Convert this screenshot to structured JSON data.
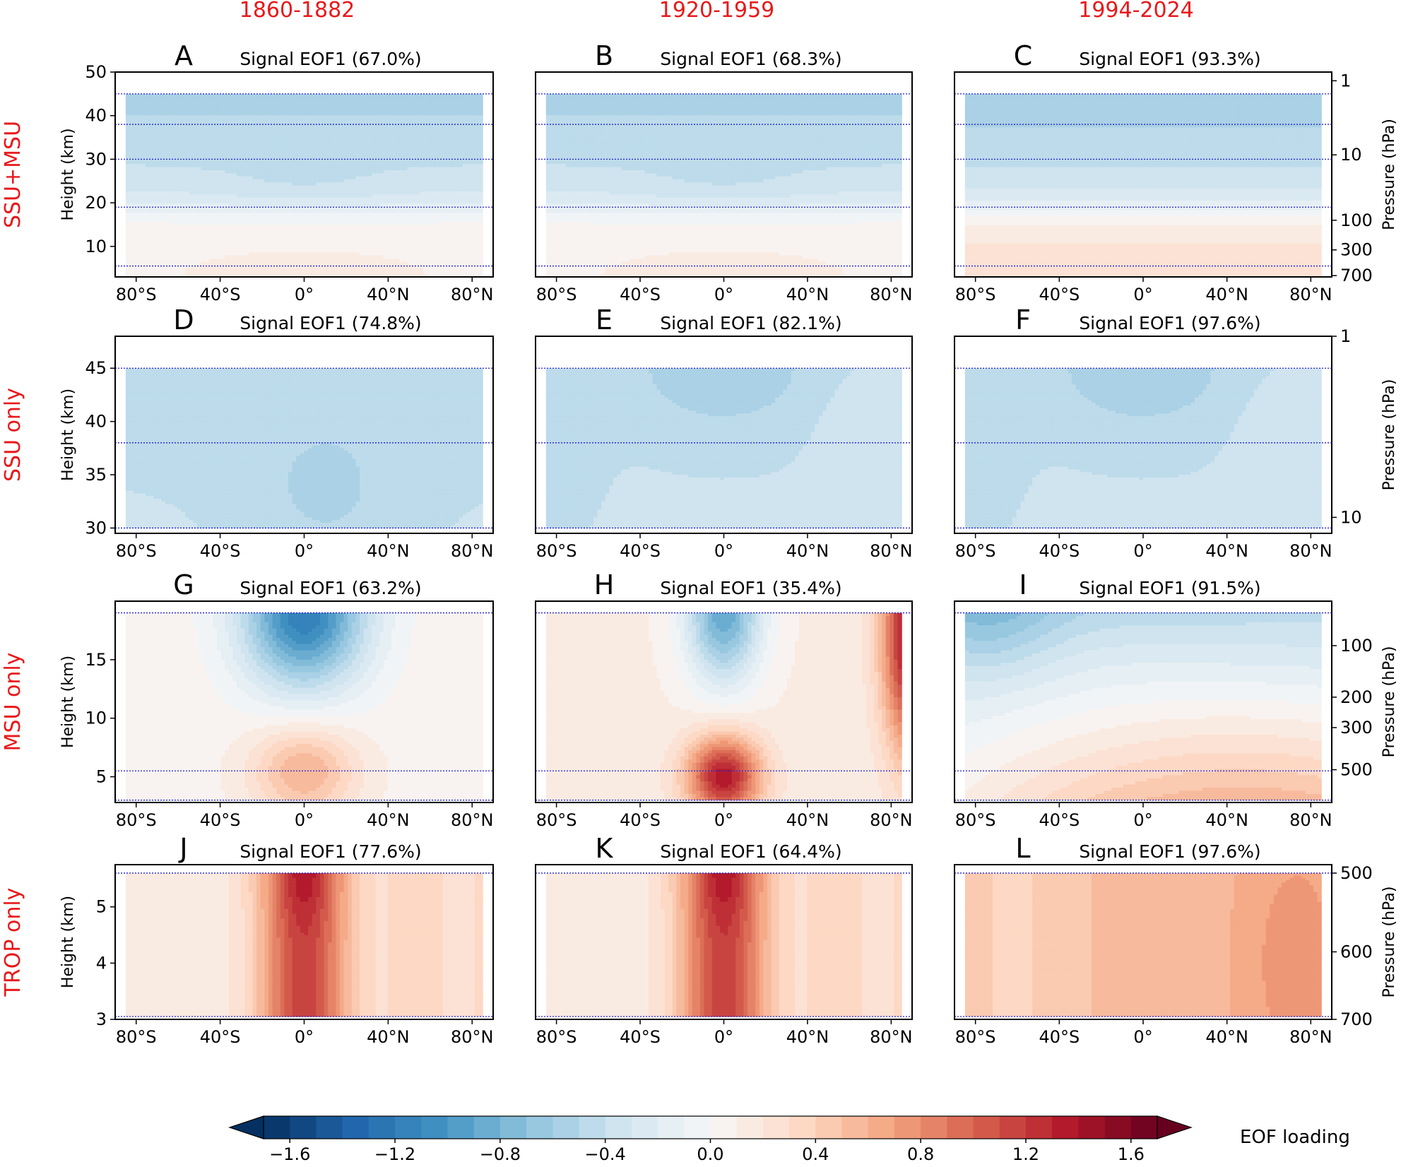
{
  "figure": {
    "column_headers": [
      "1860-1882",
      "1920-1959",
      "1994-2024"
    ],
    "row_headers": [
      "SSU+MSU",
      "SSU only",
      "MSU only",
      "TROP only"
    ],
    "header_color": "#e8191b",
    "y_label": "Height (km)",
    "y2_label": "Pressure (hPa)",
    "colorbar": {
      "label": "EOF loading",
      "vmin": -1.7,
      "vmax": 1.7,
      "step": 0.1,
      "ticks": [
        -1.6,
        -1.2,
        -0.8,
        -0.4,
        0.0,
        0.4,
        0.8,
        1.2,
        1.6
      ],
      "tick_labels": [
        "−1.6",
        "−1.2",
        "−0.8",
        "−0.4",
        "0.0",
        "0.4",
        "0.8",
        "1.2",
        "1.6"
      ],
      "cmap": "RdBu_r",
      "extend": "both"
    }
  },
  "chart_data": [
    {
      "type": "contour",
      "panel": "A",
      "letter": "A",
      "title": "Signal EOF1 (67.0%)",
      "row": 0,
      "col": 0,
      "x_ticks": [
        -80,
        -40,
        0,
        40,
        80
      ],
      "x_tick_labels": [
        "80°S",
        "40°S",
        "0°",
        "40°N",
        "80°N"
      ],
      "xlim": [
        -90,
        90
      ],
      "ylim": [
        3,
        50
      ],
      "yticks": [
        10,
        20,
        30,
        40,
        50
      ],
      "ytick_labels": [
        "10",
        "20",
        "30",
        "40",
        "50"
      ],
      "data_ylim": [
        3,
        45
      ],
      "pressure_ticks": [],
      "pressure_tick_labels": [],
      "pattern": "strat_cool_trop_warm",
      "dotted_lines_km": [
        45,
        38,
        30,
        19,
        5.5
      ]
    },
    {
      "type": "contour",
      "panel": "B",
      "letter": "B",
      "title": "Signal EOF1 (68.3%)",
      "row": 0,
      "col": 1,
      "x_ticks": [
        -80,
        -40,
        0,
        40,
        80
      ],
      "x_tick_labels": [
        "80°S",
        "40°S",
        "0°",
        "40°N",
        "80°N"
      ],
      "xlim": [
        -90,
        90
      ],
      "ylim": [
        3,
        50
      ],
      "yticks": [],
      "ytick_labels": [],
      "data_ylim": [
        3,
        45
      ],
      "pressure_ticks": [],
      "pressure_tick_labels": [],
      "pattern": "strat_cool_trop_warm",
      "dotted_lines_km": [
        45,
        38,
        30,
        19,
        5.5
      ]
    },
    {
      "type": "contour",
      "panel": "C",
      "letter": "C",
      "title": "Signal EOF1 (93.3%)",
      "row": 0,
      "col": 2,
      "x_ticks": [
        -80,
        -40,
        0,
        40,
        80
      ],
      "x_tick_labels": [
        "80°S",
        "40°S",
        "0°",
        "40°N",
        "80°N"
      ],
      "xlim": [
        -90,
        90
      ],
      "ylim": [
        3,
        50
      ],
      "yticks": [],
      "ytick_labels": [],
      "data_ylim": [
        3,
        45
      ],
      "pressure_ticks": [
        48,
        31,
        16,
        9.2,
        3.3
      ],
      "pressure_tick_labels": [
        "1",
        "10",
        "100",
        "300",
        "700"
      ],
      "pattern": "strat_cool_trop_warm_strong",
      "dotted_lines_km": [
        45,
        38,
        30,
        19,
        5.5
      ]
    },
    {
      "type": "contour",
      "panel": "D",
      "letter": "D",
      "title": "Signal EOF1 (74.8%)",
      "row": 1,
      "col": 0,
      "x_ticks": [
        -80,
        -40,
        0,
        40,
        80
      ],
      "x_tick_labels": [
        "80°S",
        "40°S",
        "0°",
        "40°N",
        "80°N"
      ],
      "xlim": [
        -90,
        90
      ],
      "ylim": [
        29.5,
        48
      ],
      "yticks": [
        30,
        35,
        40,
        45
      ],
      "ytick_labels": [
        "30",
        "35",
        "40",
        "45"
      ],
      "data_ylim": [
        30,
        45
      ],
      "pressure_ticks": [],
      "pressure_tick_labels": [],
      "pattern": "ssu_cool",
      "dotted_lines_km": [
        45,
        38,
        30
      ]
    },
    {
      "type": "contour",
      "panel": "E",
      "letter": "E",
      "title": "Signal EOF1 (82.1%)",
      "row": 1,
      "col": 1,
      "x_ticks": [
        -80,
        -40,
        0,
        40,
        80
      ],
      "x_tick_labels": [
        "80°S",
        "40°S",
        "0°",
        "40°N",
        "80°N"
      ],
      "xlim": [
        -90,
        90
      ],
      "ylim": [
        29.5,
        48
      ],
      "yticks": [],
      "ytick_labels": [],
      "data_ylim": [
        30,
        45
      ],
      "pressure_ticks": [],
      "pressure_tick_labels": [],
      "pattern": "ssu_cool_center",
      "dotted_lines_km": [
        45,
        38,
        30
      ]
    },
    {
      "type": "contour",
      "panel": "F",
      "letter": "F",
      "title": "Signal EOF1 (97.6%)",
      "row": 1,
      "col": 2,
      "x_ticks": [
        -80,
        -40,
        0,
        40,
        80
      ],
      "x_tick_labels": [
        "80°S",
        "40°S",
        "0°",
        "40°N",
        "80°N"
      ],
      "xlim": [
        -90,
        90
      ],
      "ylim": [
        29.5,
        48
      ],
      "yticks": [],
      "ytick_labels": [],
      "data_ylim": [
        30,
        45
      ],
      "pressure_ticks": [
        48,
        31
      ],
      "pressure_tick_labels": [
        "1",
        "10"
      ],
      "pattern": "ssu_cool_center",
      "dotted_lines_km": [
        45,
        38,
        30
      ]
    },
    {
      "type": "contour",
      "panel": "G",
      "letter": "G",
      "title": "Signal EOF1 (63.2%)",
      "row": 2,
      "col": 0,
      "x_ticks": [
        -80,
        -40,
        0,
        40,
        80
      ],
      "x_tick_labels": [
        "80°S",
        "40°S",
        "0°",
        "40°N",
        "80°N"
      ],
      "xlim": [
        -90,
        90
      ],
      "ylim": [
        2.8,
        20
      ],
      "yticks": [
        5,
        10,
        15
      ],
      "ytick_labels": [
        "5",
        "10",
        "15"
      ],
      "data_ylim": [
        3,
        19
      ],
      "pressure_ticks": [],
      "pressure_tick_labels": [],
      "pattern": "msu_dipole",
      "dotted_lines_km": [
        19,
        5.5,
        3
      ]
    },
    {
      "type": "contour",
      "panel": "H",
      "letter": "H",
      "title": "Signal EOF1 (35.4%)",
      "row": 2,
      "col": 1,
      "x_ticks": [
        -80,
        -40,
        0,
        40,
        80
      ],
      "x_tick_labels": [
        "80°S",
        "40°S",
        "0°",
        "40°N",
        "80°N"
      ],
      "xlim": [
        -90,
        90
      ],
      "ylim": [
        2.8,
        20
      ],
      "yticks": [],
      "ytick_labels": [],
      "data_ylim": [
        3,
        19
      ],
      "pressure_ticks": [],
      "pressure_tick_labels": [],
      "pattern": "msu_dipole_arctic",
      "dotted_lines_km": [
        19,
        5.5,
        3
      ]
    },
    {
      "type": "contour",
      "panel": "I",
      "letter": "I",
      "title": "Signal EOF1 (91.5%)",
      "row": 2,
      "col": 2,
      "x_ticks": [
        -80,
        -40,
        0,
        40,
        80
      ],
      "x_tick_labels": [
        "80°S",
        "40°S",
        "0°",
        "40°N",
        "80°N"
      ],
      "xlim": [
        -90,
        90
      ],
      "ylim": [
        2.8,
        20
      ],
      "yticks": [],
      "ytick_labels": [],
      "data_ylim": [
        3,
        19
      ],
      "pressure_ticks": [
        16.2,
        11.8,
        9.2,
        5.6
      ],
      "pressure_tick_labels": [
        "100",
        "200",
        "300",
        "500"
      ],
      "pattern": "msu_warm",
      "dotted_lines_km": [
        19,
        5.5,
        3
      ]
    },
    {
      "type": "contour",
      "panel": "J",
      "letter": "J",
      "title": "Signal EOF1 (77.6%)",
      "row": 3,
      "col": 0,
      "x_ticks": [
        -80,
        -40,
        0,
        40,
        80
      ],
      "x_tick_labels": [
        "80°S",
        "40°S",
        "0°",
        "40°N",
        "80°N"
      ],
      "xlim": [
        -90,
        90
      ],
      "ylim": [
        3,
        5.75
      ],
      "yticks": [
        3,
        4,
        5
      ],
      "ytick_labels": [
        "3",
        "4",
        "5"
      ],
      "data_ylim": [
        3.05,
        5.6
      ],
      "pressure_ticks": [],
      "pressure_tick_labels": [],
      "pattern": "trop_tropics",
      "dotted_lines_km": [
        5.6,
        3.05
      ]
    },
    {
      "type": "contour",
      "panel": "K",
      "letter": "K",
      "title": "Signal EOF1 (64.4%)",
      "row": 3,
      "col": 1,
      "x_ticks": [
        -80,
        -40,
        0,
        40,
        80
      ],
      "x_tick_labels": [
        "80°S",
        "40°S",
        "0°",
        "40°N",
        "80°N"
      ],
      "xlim": [
        -90,
        90
      ],
      "ylim": [
        3,
        5.75
      ],
      "yticks": [],
      "ytick_labels": [],
      "data_ylim": [
        3.05,
        5.6
      ],
      "pressure_ticks": [],
      "pressure_tick_labels": [],
      "pattern": "trop_tropics",
      "dotted_lines_km": [
        5.6,
        3.05
      ]
    },
    {
      "type": "contour",
      "panel": "L",
      "letter": "L",
      "title": "Signal EOF1 (97.6%)",
      "row": 3,
      "col": 2,
      "x_ticks": [
        -80,
        -40,
        0,
        40,
        80
      ],
      "x_tick_labels": [
        "80°S",
        "40°S",
        "0°",
        "40°N",
        "80°N"
      ],
      "xlim": [
        -90,
        90
      ],
      "ylim": [
        3,
        5.75
      ],
      "yticks": [],
      "ytick_labels": [],
      "data_ylim": [
        3.05,
        5.6
      ],
      "pressure_ticks": [
        5.6,
        4.2,
        3.0
      ],
      "pressure_tick_labels": [
        "500",
        "600",
        "700"
      ],
      "pattern": "trop_nh",
      "dotted_lines_km": [
        5.6,
        3.05
      ]
    }
  ]
}
